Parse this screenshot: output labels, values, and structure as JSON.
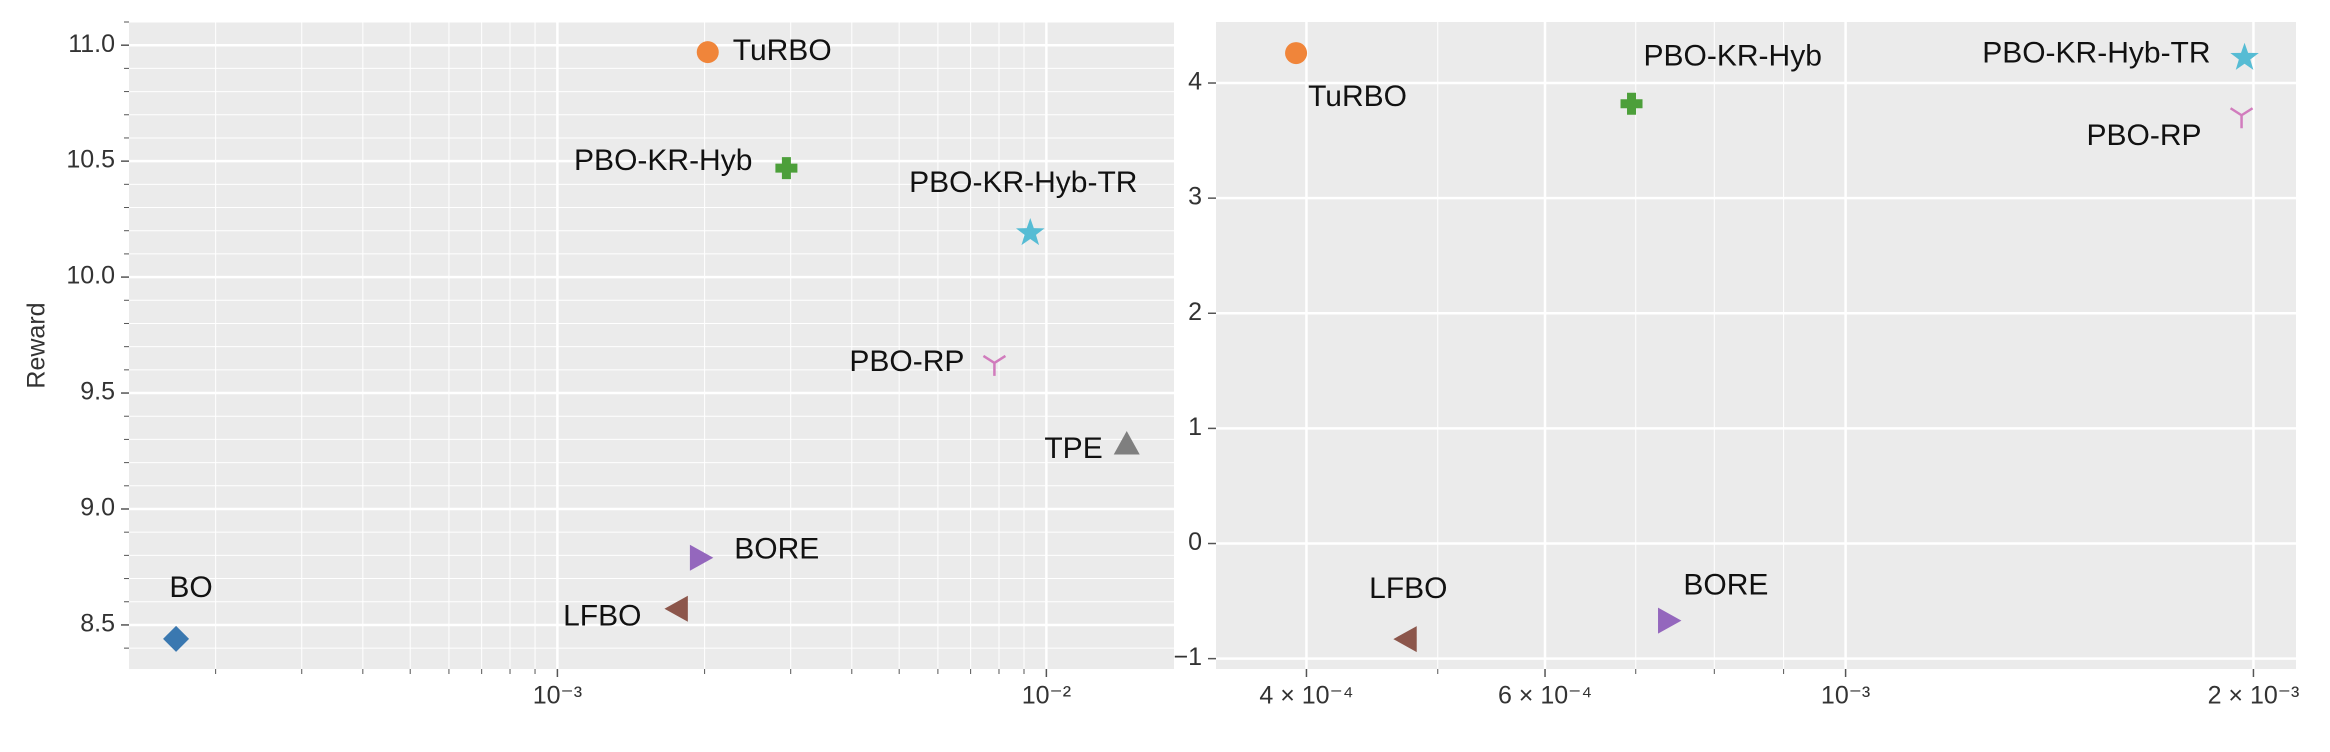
{
  "chart_data": [
    {
      "type": "scatter",
      "ylabel": "Reward",
      "xscale": "log",
      "xlim": [
        0.000133,
        0.01824
      ],
      "ylim": [
        8.31,
        11.1
      ],
      "xticks": [
        {
          "value": 0.001,
          "label": "10⁻³"
        },
        {
          "value": 0.01,
          "label": "10⁻²"
        }
      ],
      "xminorticks": [
        0.0002,
        0.0003,
        0.0004,
        0.0005,
        0.0006,
        0.0007,
        0.0008,
        0.0009,
        0.002,
        0.003,
        0.004,
        0.005,
        0.006,
        0.007,
        0.008,
        0.009
      ],
      "yticks": [
        8.5,
        {
          "value": 9,
          "label": "9.0"
        },
        9.5,
        {
          "value": 10,
          "label": "10.0"
        },
        10.5,
        {
          "value": 11,
          "label": "11.0"
        }
      ],
      "yminorticks": [
        8.4,
        8.6,
        8.7,
        8.8,
        8.9,
        9.1,
        9.2,
        9.3,
        9.4,
        9.6,
        9.7,
        9.8,
        9.9,
        10.1,
        10.2,
        10.3,
        10.4,
        10.6,
        10.7,
        10.8,
        10.9,
        11.1
      ],
      "grid": true,
      "series": [
        {
          "name": "TuRBO",
          "color": "#f0853a",
          "marker": "circle",
          "x": [
            0.00203
          ],
          "values": [
            10.97
          ]
        },
        {
          "name": "PBO-KR-Hyb",
          "color": "#4c9f3a",
          "marker": "plus",
          "x": [
            0.00294
          ],
          "values": [
            10.47
          ]
        },
        {
          "name": "PBO-KR-Hyb-TR",
          "color": "#56bcd4",
          "marker": "star",
          "x": [
            0.00927
          ],
          "values": [
            10.19
          ]
        },
        {
          "name": "PBO-RP",
          "color": "#d17cbd",
          "marker": "tri_down",
          "x": [
            0.00783
          ],
          "values": [
            9.63
          ]
        },
        {
          "name": "TPE",
          "color": "#7f7f7f",
          "marker": "triangle_up",
          "x": [
            0.0146
          ],
          "values": [
            9.28
          ]
        },
        {
          "name": "BORE",
          "color": "#9467bd",
          "marker": "triangle_right",
          "x": [
            0.00196
          ],
          "values": [
            8.79
          ]
        },
        {
          "name": "LFBO",
          "color": "#8c564b",
          "marker": "triangle_left",
          "x": [
            0.00176
          ],
          "values": [
            8.57
          ]
        },
        {
          "name": "BO",
          "color": "#3a78b0",
          "marker": "diamond",
          "x": [
            0.000166
          ],
          "values": [
            8.44
          ]
        }
      ]
    },
    {
      "type": "scatter",
      "xscale": "log",
      "xlim": [
        0.000343,
        0.00215
      ],
      "ylim": [
        -1.09,
        4.53
      ],
      "xticks": [
        {
          "value": 0.0004,
          "label": "4 × 10⁻⁴"
        },
        {
          "value": 0.0006,
          "label": "6 × 10⁻⁴"
        },
        {
          "value": 0.001,
          "label": "10⁻³"
        },
        {
          "value": 0.002,
          "label": "2 × 10⁻³"
        }
      ],
      "xminorticks": [
        0.0005,
        0.0007,
        0.0008,
        0.0009
      ],
      "yticks": [
        {
          "value": -1,
          "label": "−1"
        },
        0,
        1,
        2,
        3,
        4
      ],
      "grid": true,
      "series": [
        {
          "name": "TuRBO",
          "color": "#f0853a",
          "marker": "circle",
          "x": [
            0.000393
          ],
          "values": [
            4.26
          ]
        },
        {
          "name": "PBO-KR-Hyb",
          "color": "#4c9f3a",
          "marker": "plus",
          "x": [
            0.000695
          ],
          "values": [
            3.82
          ]
        },
        {
          "name": "PBO-KR-Hyb-TR",
          "color": "#56bcd4",
          "marker": "star",
          "x": [
            0.00197
          ],
          "values": [
            4.22
          ]
        },
        {
          "name": "PBO-RP",
          "color": "#d17cbd",
          "marker": "tri_down",
          "x": [
            0.00196
          ],
          "values": [
            3.72
          ]
        },
        {
          "name": "LFBO",
          "color": "#8c564b",
          "marker": "triangle_left",
          "x": [
            0.000474
          ],
          "values": [
            -0.83
          ]
        },
        {
          "name": "BORE",
          "color": "#9467bd",
          "marker": "triangle_right",
          "x": [
            0.00074
          ],
          "values": [
            -0.67
          ]
        }
      ]
    }
  ]
}
